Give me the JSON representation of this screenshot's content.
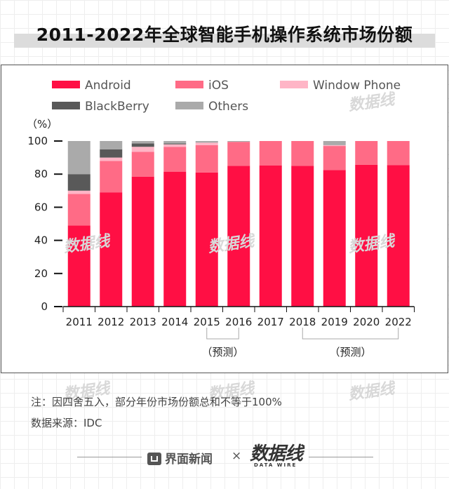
{
  "title": "2011-2022年全球智能手机操作系统市场份额",
  "chart_data": {
    "type": "bar",
    "stacked": true,
    "ylabel": "（%）",
    "ylim": [
      0,
      100
    ],
    "yticks": [
      "0",
      "20",
      "40",
      "60",
      "80",
      "100"
    ],
    "categories": [
      "2011",
      "2012",
      "2013",
      "2014",
      "2015",
      "2016",
      "2017",
      "2018",
      "2019",
      "2020",
      "2022"
    ],
    "series": [
      {
        "name": "Android",
        "color": "#ff0f44",
        "values": [
          49,
          69,
          78.5,
          81.5,
          81,
          85,
          85.3,
          85,
          82.5,
          85.7,
          85.5
        ]
      },
      {
        "name": "iOS",
        "color": "#ff6b86",
        "values": [
          19,
          19,
          15,
          15,
          16.5,
          14.5,
          14.7,
          15,
          14.5,
          14.3,
          14.5
        ]
      },
      {
        "name": "Window Phone",
        "color": "#ffb5c6",
        "values": [
          2,
          2,
          3,
          1.5,
          1.5,
          0,
          0,
          0,
          0.5,
          0,
          0
        ]
      },
      {
        "name": "BlackBerry",
        "color": "#595959",
        "values": [
          10,
          5,
          2,
          0.5,
          0,
          0,
          0,
          0,
          0,
          0,
          0
        ]
      },
      {
        "name": "Others",
        "color": "#aaaaaa",
        "values": [
          20,
          5,
          1.5,
          1.5,
          1,
          0.5,
          0,
          0,
          2.5,
          0,
          0
        ]
      }
    ],
    "forecast_label": "（预测）",
    "forecast_groups": [
      [
        "2015",
        "2016"
      ],
      [
        "2018",
        "2019",
        "2020",
        "2022"
      ]
    ]
  },
  "watermark": "数据线",
  "notes": {
    "note": "注：因四舍五入，部分年份市场份额总和不等于100%",
    "source": "数据来源：IDC"
  },
  "footer": {
    "brand_left": "界面新闻",
    "separator": "×",
    "brand_right": "数据线",
    "brand_right_sub": "DATA WIRE"
  }
}
